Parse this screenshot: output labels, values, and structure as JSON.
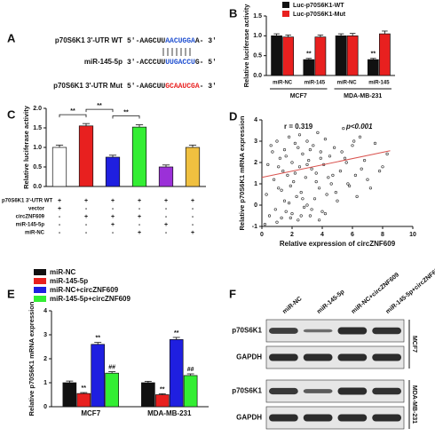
{
  "panel_labels": [
    "A",
    "B",
    "C",
    "D",
    "E",
    "F"
  ],
  "panel_a": {
    "rows": [
      {
        "label": "p70S6K1 3'-UTR WT",
        "prefix": "5'-AAGCUU",
        "highlight": "AACUGGA",
        "suffix": "A- 3'"
      },
      {
        "label": "miR-145-5p",
        "prefix": "3'-ACCCUU",
        "highlight": "UUGACCU",
        "suffix": "G- 5'"
      },
      {
        "label": "p70S6K1 3'-UTR Mut",
        "prefix": "5'-AAGCUU",
        "highlight": "GCAAUCGA",
        "suffix": "- 3'"
      }
    ]
  },
  "chart_data": [
    {
      "type": "bar",
      "ylabel": "Relative luciferase activity",
      "categories": [
        "miR-NC",
        "miR-145",
        "miR-NC",
        "miR-145"
      ],
      "group_labels": [
        "MCF7",
        "MDA-MB-231"
      ],
      "series": [
        {
          "name": "Luc-p70S6K1-WT",
          "color": "#111111",
          "values": [
            1.0,
            0.4,
            1.0,
            0.4
          ],
          "errors": [
            0.05,
            0.03,
            0.05,
            0.03
          ],
          "significance": [
            null,
            "**",
            null,
            "**"
          ]
        },
        {
          "name": "Luc-p70S6K1-Mut",
          "color": "#e8201f",
          "values": [
            0.97,
            0.97,
            1.0,
            1.05
          ],
          "errors": [
            0.05,
            0.05,
            0.06,
            0.07
          ],
          "significance": [
            null,
            null,
            null,
            null
          ]
        }
      ],
      "ylim": [
        0,
        1.5
      ],
      "yticks": [
        {
          "value": 0,
          "label": "0.0"
        },
        {
          "value": 0.5,
          "label": "0.5"
        },
        {
          "value": 1,
          "label": "1.0"
        },
        {
          "value": 1.5,
          "label": "1.5"
        }
      ]
    },
    {
      "type": "bar",
      "ylabel": "Relative luciferase activity",
      "values": [
        1.0,
        1.55,
        0.75,
        1.52,
        0.5,
        1.0
      ],
      "errors": [
        0.06,
        0.06,
        0.05,
        0.06,
        0.05,
        0.06
      ],
      "colors": [
        "#ffffff",
        "#e8201f",
        "#1f1fe0",
        "#33ee33",
        "#9b30d8",
        "#f0c040"
      ],
      "brackets": [
        "**",
        "**",
        "**"
      ],
      "table": [
        {
          "label": "p70S6K1 3'-UTR WT",
          "cells": [
            "+",
            "+",
            "+",
            "+",
            "+",
            "+"
          ]
        },
        {
          "label": "vector",
          "cells": [
            "+",
            "-",
            "-",
            "-",
            "-",
            "-"
          ]
        },
        {
          "label": "circZNF609",
          "cells": [
            "-",
            "+",
            "+",
            "+",
            "-",
            "-"
          ]
        },
        {
          "label": "miR-145-5p",
          "cells": [
            "-",
            "-",
            "+",
            "-",
            "+",
            "-"
          ]
        },
        {
          "label": "miR-NC",
          "cells": [
            "-",
            "-",
            "-",
            "+",
            "-",
            "+"
          ]
        }
      ],
      "ylim": [
        0,
        2
      ],
      "yticks": [
        {
          "value": 0,
          "label": "0.0"
        },
        {
          "value": 0.5,
          "label": "0.5"
        },
        {
          "value": 1,
          "label": "1.0"
        },
        {
          "value": 1.5,
          "label": "1.5"
        },
        {
          "value": 2,
          "label": "2.0"
        }
      ]
    },
    {
      "type": "scatter",
      "xlabel": "Relative expression of circZNF609",
      "ylabel": "Relative p70S6K1 mRNA expression",
      "stats": [
        "r = 0.319",
        "p<0.001"
      ],
      "point_color": "#222222",
      "fit_color": "#d9534f",
      "x": [
        0.3,
        0.5,
        0.6,
        0.8,
        0.9,
        1.0,
        1.1,
        1.2,
        1.3,
        1.4,
        1.5,
        1.5,
        1.6,
        1.7,
        1.8,
        1.9,
        2.0,
        2.0,
        2.1,
        2.2,
        2.3,
        2.4,
        2.5,
        2.5,
        2.6,
        2.7,
        2.8,
        2.9,
        3.0,
        3.0,
        3.1,
        3.2,
        3.3,
        3.4,
        3.5,
        3.6,
        3.7,
        3.8,
        3.9,
        4.0,
        4.1,
        4.2,
        4.3,
        4.5,
        4.6,
        4.8,
        5.0,
        5.2,
        5.4,
        5.6,
        5.8,
        6.0,
        6.2,
        6.5,
        6.8,
        7.0,
        7.5,
        8.0,
        8.3,
        0.4,
        0.7,
        1.0,
        1.3,
        1.6,
        1.9,
        2.2,
        2.4,
        2.7,
        3.0,
        3.3,
        3.6,
        3.9,
        4.2,
        4.4,
        4.9,
        5.3,
        5.7,
        6.1,
        6.6,
        7.2,
        0.2,
        1.1,
        1.8,
        2.6,
        3.2,
        3.8,
        4.7,
        5.5,
        6.3,
        7.8
      ],
      "y": [
        0.5,
        -0.5,
        2.8,
        1.2,
        -0.2,
        3.0,
        0.8,
        2.2,
        -0.6,
        1.6,
        0.2,
        2.6,
        -0.3,
        1.4,
        3.2,
        0.9,
        -0.4,
        2.0,
        1.1,
        2.9,
        0.4,
        -0.7,
        1.8,
        3.3,
        0.6,
        2.4,
        -0.1,
        1.3,
        3.0,
        0.0,
        2.1,
        -0.5,
        1.7,
        2.8,
        0.3,
        1.5,
        3.4,
        0.8,
        2.5,
        -0.3,
        1.9,
        3.1,
        0.5,
        2.3,
        1.0,
        2.7,
        0.2,
        1.6,
        3.6,
        2.0,
        0.9,
        2.8,
        1.4,
        3.2,
        2.1,
        1.2,
        2.9,
        1.8,
        2.4,
        1.9,
        2.5,
        -0.8,
        0.7,
        2.3,
        -0.6,
        1.5,
        2.7,
        0.3,
        1.9,
        -0.2,
        1.1,
        2.2,
        -0.4,
        1.3,
        0.6,
        2.5,
        1.0,
        3.0,
        1.7,
        0.8,
        -0.9,
        1.8,
        0.1,
        -0.5,
        2.6,
        -0.7,
        1.4,
        2.2,
        0.4,
        1.6
      ],
      "fit": {
        "x": [
          0,
          8.5
        ],
        "y": [
          1.3,
          2.55
        ]
      },
      "xlim": [
        0,
        10
      ],
      "xticks": [
        0,
        2,
        4,
        6,
        8,
        10
      ],
      "ylim": [
        -1,
        4
      ],
      "yticks": [
        -1,
        0,
        1,
        2,
        3,
        4
      ]
    },
    {
      "type": "bar",
      "ylabel": "Relative p70S6K1 mRNA expression",
      "categories": [
        "MCF7",
        "MDA-MB-231"
      ],
      "series": [
        {
          "name": "miR-NC",
          "color": "#111111",
          "values": [
            1.0,
            1.0
          ],
          "errors": [
            0.07,
            0.06
          ],
          "significance": [
            null,
            null
          ]
        },
        {
          "name": "miR-145-5p",
          "color": "#e8201f",
          "values": [
            0.55,
            0.5
          ],
          "errors": [
            0.04,
            0.04
          ],
          "significance": [
            "**",
            "**"
          ]
        },
        {
          "name": "miR-NC+circZNF609",
          "color": "#1f1fe0",
          "values": [
            2.6,
            2.8
          ],
          "errors": [
            0.08,
            0.09
          ],
          "significance": [
            "**",
            "**"
          ]
        },
        {
          "name": "miR-145-5p+circZNF609",
          "color": "#33ee33",
          "values": [
            1.4,
            1.3
          ],
          "errors": [
            0.06,
            0.07
          ],
          "significance": [
            "##",
            "##"
          ]
        }
      ],
      "ylim": [
        0,
        4
      ],
      "yticks": [
        0,
        1,
        2,
        3,
        4
      ]
    }
  ],
  "panel_f": {
    "columns": [
      "miR-NC",
      "miR-145-5p",
      "miR-NC+circZNF609",
      "miR-145-5p+circZNF609"
    ],
    "blocks": [
      {
        "cell": "MCF7",
        "rows": [
          "p70S6K1",
          "GAPDH"
        ]
      },
      {
        "cell": "MDA-MB-231",
        "rows": [
          "p70S6K1",
          "GAPDH"
        ]
      }
    ]
  }
}
